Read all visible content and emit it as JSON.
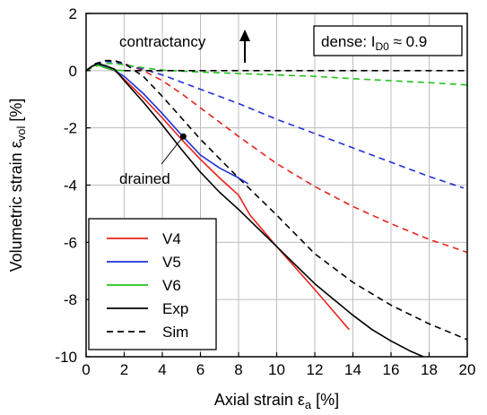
{
  "chart_data": {
    "type": "line",
    "xlabel": "Axial strain ε",
    "xlabel_sub": "a",
    "xlabel_unit": " [%]",
    "ylabel": "Volumetric strain ε",
    "ylabel_sub": "vol",
    "ylabel_unit": " [%]",
    "xlim": [
      0,
      20
    ],
    "ylim": [
      -10,
      2
    ],
    "xticks": [
      "0",
      "2",
      "4",
      "6",
      "8",
      "10",
      "12",
      "14",
      "16",
      "18",
      "20"
    ],
    "yticks": [
      "2",
      "0",
      "-2",
      "-4",
      "-6",
      "-8",
      "-10"
    ],
    "grid": true,
    "legend_position": "bottom-left",
    "legend": [
      {
        "label": "V4",
        "color": "#e8221c",
        "style": "solid"
      },
      {
        "label": "V5",
        "color": "#1f2fd8",
        "style": "solid"
      },
      {
        "label": "V6",
        "color": "#22c21c",
        "style": "solid"
      },
      {
        "label": "Exp",
        "color": "#000000",
        "style": "solid"
      },
      {
        "label": "Sim",
        "color": "#000000",
        "style": "dashed"
      }
    ],
    "annotations": {
      "contractancy": "contractancy",
      "drained": "drained",
      "box_label": "dense: I",
      "box_sub": "D0",
      "box_value": " ≈ 0.9"
    },
    "drained_marker": {
      "x": 5.1,
      "y": -2.3
    },
    "series": [
      {
        "name": "V4",
        "kind": "Exp",
        "color": "#e8221c",
        "dash": false,
        "x": [
          0,
          0.3,
          0.6,
          1.0,
          1.5,
          2.0,
          3.0,
          4.0,
          5.0,
          6.0,
          7.0,
          8.0,
          8.6,
          10.0,
          12.0,
          13.8
        ],
        "y": [
          0,
          0.15,
          0.2,
          0.1,
          0,
          -0.3,
          -0.95,
          -1.65,
          -2.4,
          -3.1,
          -3.75,
          -4.35,
          -5.05,
          -6.15,
          -7.65,
          -9.05
        ]
      },
      {
        "name": "V5",
        "kind": "Exp",
        "color": "#1f2fd8",
        "dash": false,
        "x": [
          0,
          0.3,
          0.6,
          1.0,
          1.5,
          2.0,
          3.0,
          4.0,
          5.0,
          6.0,
          7.0,
          8.0,
          8.5
        ],
        "y": [
          0,
          0.15,
          0.22,
          0.12,
          0,
          -0.2,
          -0.8,
          -1.5,
          -2.25,
          -2.95,
          -3.4,
          -3.75,
          -3.95
        ]
      },
      {
        "name": "V6",
        "kind": "Exp",
        "color": "#22c21c",
        "dash": false,
        "x": [
          0,
          0.3,
          0.6,
          1.0,
          1.5,
          2.0
        ],
        "y": [
          0,
          0.15,
          0.2,
          0.1,
          0.02,
          0
        ]
      },
      {
        "name": "Exp",
        "kind": "Exp",
        "color": "#000000",
        "dash": false,
        "x": [
          0,
          0.3,
          0.6,
          1.0,
          1.5,
          2.0,
          3.0,
          4.0,
          5.0,
          6.0,
          7.0,
          8.0,
          9.0,
          10.0,
          11.0,
          12.0,
          13.0,
          14.0,
          15.0,
          16.0,
          17.0,
          17.7
        ],
        "y": [
          0,
          0.15,
          0.25,
          0.18,
          0.05,
          -0.35,
          -1.1,
          -1.9,
          -2.75,
          -3.55,
          -4.25,
          -4.85,
          -5.5,
          -6.15,
          -6.8,
          -7.45,
          -8.0,
          -8.55,
          -9.05,
          -9.45,
          -9.8,
          -10.0
        ]
      },
      {
        "name": "V4 Sim",
        "kind": "Sim",
        "color": "#e8221c",
        "dash": true,
        "x": [
          0,
          0.5,
          1.0,
          1.5,
          2.0,
          3.0,
          4.0,
          5.0,
          6.0,
          8.0,
          10.0,
          12.0,
          14.0,
          16.0,
          18.0,
          20.0
        ],
        "y": [
          0,
          0.2,
          0.35,
          0.35,
          0.25,
          0,
          -0.35,
          -0.8,
          -1.3,
          -2.3,
          -3.25,
          -4.05,
          -4.75,
          -5.35,
          -5.9,
          -6.35
        ]
      },
      {
        "name": "V5 Sim",
        "kind": "Sim",
        "color": "#1f2fd8",
        "dash": true,
        "x": [
          0,
          0.5,
          1.0,
          1.5,
          2.0,
          3.0,
          4.0,
          5.0,
          6.0,
          8.0,
          10.0,
          12.0,
          14.0,
          16.0,
          18.0,
          19.8
        ],
        "y": [
          0,
          0.2,
          0.32,
          0.3,
          0.22,
          0.05,
          -0.15,
          -0.4,
          -0.65,
          -1.15,
          -1.7,
          -2.2,
          -2.7,
          -3.2,
          -3.7,
          -4.1
        ]
      },
      {
        "name": "V6 Sim",
        "kind": "Sim",
        "color": "#22c21c",
        "dash": true,
        "x": [
          0,
          0.5,
          1.0,
          1.5,
          2.0,
          3.0,
          4.0,
          6.0,
          8.0,
          10.0,
          12.0,
          14.0,
          16.0,
          18.0,
          20.0
        ],
        "y": [
          0,
          0.15,
          0.25,
          0.25,
          0.2,
          0.1,
          0.02,
          -0.05,
          -0.1,
          -0.15,
          -0.2,
          -0.28,
          -0.35,
          -0.42,
          -0.5
        ]
      },
      {
        "name": "Exp Sim",
        "kind": "Sim",
        "color": "#000000",
        "dash": true,
        "x": [
          0,
          0.5,
          1.0,
          1.5,
          2.0,
          3.0,
          4.0,
          5.0,
          6.0,
          8.0,
          9.0,
          10.0,
          12.0,
          14.0,
          16.0,
          18.0,
          20.0
        ],
        "y": [
          0,
          0.25,
          0.35,
          0.35,
          0.25,
          -0.2,
          -0.9,
          -1.65,
          -2.4,
          -3.75,
          -4.4,
          -5.05,
          -6.4,
          -7.4,
          -8.2,
          -8.85,
          -9.4
        ]
      },
      {
        "name": "Zero line",
        "kind": "Sim",
        "color": "#000000",
        "dash": true,
        "x": [
          2.0,
          20.0
        ],
        "y": [
          0,
          0
        ]
      }
    ]
  }
}
